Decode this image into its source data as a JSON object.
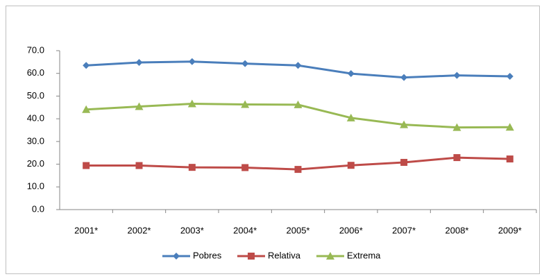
{
  "chart_data": {
    "type": "line",
    "categories": [
      "2001*",
      "2002*",
      "2003*",
      "2004*",
      "2005*",
      "2006*",
      "2007*",
      "2008*",
      "2009*"
    ],
    "series": [
      {
        "name": "Pobres",
        "color": "#4a7ebb",
        "marker": "diamond",
        "values": [
          63.5,
          64.8,
          65.2,
          64.3,
          63.5,
          59.9,
          58.2,
          59.1,
          58.7
        ]
      },
      {
        "name": "Relativa",
        "color": "#be4b48",
        "marker": "square",
        "values": [
          19.4,
          19.4,
          18.6,
          18.5,
          17.7,
          19.5,
          20.8,
          22.9,
          22.3
        ]
      },
      {
        "name": "Extrema",
        "color": "#98b954",
        "marker": "triangle",
        "values": [
          44.1,
          45.4,
          46.6,
          46.3,
          46.2,
          40.4,
          37.4,
          36.2,
          36.3
        ]
      }
    ],
    "ylim": [
      0,
      70
    ],
    "yticks": [
      {
        "value": 0,
        "label": "0.0"
      },
      {
        "value": 10,
        "label": "10.0"
      },
      {
        "value": 20,
        "label": "20.0"
      },
      {
        "value": 30,
        "label": "30.0"
      },
      {
        "value": 40,
        "label": "40.0"
      },
      {
        "value": 50,
        "label": "50.0"
      },
      {
        "value": 60,
        "label": "60.0"
      },
      {
        "value": 70,
        "label": "70.0"
      }
    ],
    "grid": false,
    "legend": "bottom"
  }
}
